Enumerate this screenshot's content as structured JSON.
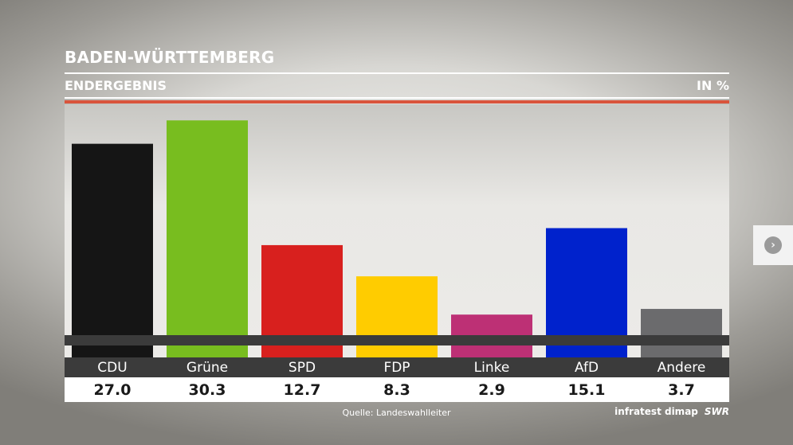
{
  "header": {
    "title": "BADEN-WÜRTTEMBERG",
    "subtitle": "ENDERGEBNIS",
    "unit": "IN %"
  },
  "footer": {
    "source": "Quelle: Landeswahlleiter",
    "credit": "infratest dimap",
    "brand": "SWR"
  },
  "nav": {
    "next_icon": "chevron-right-icon"
  },
  "chart_data": {
    "type": "bar",
    "categories": [
      "CDU",
      "Grüne",
      "SPD",
      "FDP",
      "Linke",
      "AfD",
      "Andere"
    ],
    "values": [
      27.0,
      30.3,
      12.7,
      8.3,
      2.9,
      15.1,
      3.7
    ],
    "value_labels": [
      "27.0",
      "30.3",
      "12.7",
      "8.3",
      "2.9",
      "15.1",
      "3.7"
    ],
    "colors": [
      "#151515",
      "#78bd1f",
      "#d8201e",
      "#ffcc00",
      "#bd3075",
      "#0022cc",
      "#6b6b6d"
    ],
    "ylim": [
      0,
      31
    ],
    "grid": false,
    "legend": "none"
  }
}
